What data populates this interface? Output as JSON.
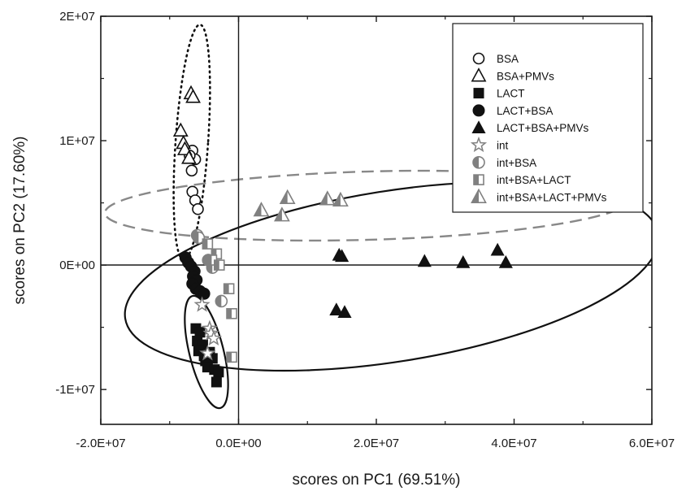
{
  "chart_data": {
    "type": "scatter",
    "xlabel": "scores on PC1 (69.51%)",
    "ylabel": "scores on PC2 (17.60%)",
    "xlim": [
      -20000000,
      60000000
    ],
    "ylim": [
      -12800000,
      20000000
    ],
    "x_ticks": [
      {
        "value": -20000000,
        "label": "-2.0E+07"
      },
      {
        "value": 0,
        "label": "0.0E+00"
      },
      {
        "value": 20000000,
        "label": "2.0E+07"
      },
      {
        "value": 40000000,
        "label": "4.0E+07"
      },
      {
        "value": 60000000,
        "label": "6.0E+07"
      }
    ],
    "y_ticks": [
      {
        "value": 20000000,
        "label": "2E+07"
      },
      {
        "value": 10000000,
        "label": "1E+07"
      },
      {
        "value": 0,
        "label": "0E+00"
      },
      {
        "value": -10000000,
        "label": "-1E+07"
      }
    ],
    "legend_position": "top-right",
    "series": [
      {
        "name": "BSA",
        "marker": "circle-open",
        "color": "#111111",
        "x": [
          -6700000.0,
          -6300000.0,
          -7100000.0,
          -6800000.0,
          -6700000.0,
          -6300000.0,
          -5900000.0
        ],
        "y": [
          9200000.0,
          8500000.0,
          8800000.0,
          7600000.0,
          5900000.0,
          5200000.0,
          4500000.0
        ]
      },
      {
        "name": "BSA+PMVs",
        "marker": "triangle-open",
        "color": "#111111",
        "x": [
          -6900000.0,
          -6600000.0,
          -8400000.0,
          -8000000.0,
          -7800000.0,
          -7200000.0
        ],
        "y": [
          13800000.0,
          13500000.0,
          10800000.0,
          9800000.0,
          9300000.0,
          8600000.0
        ]
      },
      {
        "name": "LACT",
        "marker": "square",
        "color": "#111111",
        "x": [
          -6200000.0,
          -5600000.0,
          -6000000.0,
          -5200000.0,
          -5800000.0,
          -5000000.0,
          -4200000.0,
          -4800000.0,
          -3800000.0,
          -4500000.0,
          -3500000.0,
          -2900000.0,
          -3200000.0
        ],
        "y": [
          -5100000.0,
          -5400000.0,
          -6100000.0,
          -6400000.0,
          -6900000.0,
          -7300000.0,
          -7000000.0,
          -7700000.0,
          -7500000.0,
          -8200000.0,
          -8400000.0,
          -8600000.0,
          -9400000.0
        ]
      },
      {
        "name": "LACT+BSA",
        "marker": "circle",
        "color": "#111111",
        "x": [
          -7700000.0,
          -7300000.0,
          -6900000.0,
          -6400000.0,
          -6600000.0,
          -6100000.0,
          -6700000.0,
          -6200000.0,
          -5600000.0,
          -5000000.0
        ],
        "y": [
          600000.0,
          200000.0,
          -100000.0,
          -500000.0,
          -900000.0,
          -1200000.0,
          -1500000.0,
          -1900000.0,
          -2100000.0,
          -2300000.0
        ]
      },
      {
        "name": "LACT+BSA+PMVs",
        "marker": "triangle",
        "color": "#111111",
        "x": [
          14600000.0,
          15000000.0,
          14200000.0,
          15400000.0,
          27000000.0,
          32600000.0,
          37600000.0,
          38800000.0
        ],
        "y": [
          800000.0,
          700000.0,
          -3600000.0,
          -3800000.0,
          300000.0,
          200000.0,
          1200000.0,
          200000.0
        ]
      },
      {
        "name": "int",
        "marker": "star-open",
        "color": "#808080",
        "x": [
          -5300000.0,
          -4200000.0,
          -4000000.0,
          -3600000.0,
          -4500000.0
        ],
        "y": [
          -3200000.0,
          -5100000.0,
          -5500000.0,
          -5900000.0,
          -7100000.0
        ]
      },
      {
        "name": "int+BSA",
        "marker": "circle-half",
        "color": "#808080",
        "x": [
          -6000000.0,
          -5800000.0,
          -4400000.0,
          -3800000.0,
          -2500000.0
        ],
        "y": [
          2400000.0,
          2200000.0,
          400000.0,
          -200000.0,
          -2900000.0
        ]
      },
      {
        "name": "int+BSA+LACT",
        "marker": "square-half",
        "color": "#808080",
        "x": [
          -4500000.0,
          -3200000.0,
          -3900000.0,
          -2800000.0,
          -1400000.0,
          -1000000.0,
          -1000000.0
        ],
        "y": [
          1700000.0,
          900000.0,
          400000.0,
          0.0,
          -1900000.0,
          -3900000.0,
          -7400000.0
        ]
      },
      {
        "name": "int+BSA+LACT+PMVs",
        "marker": "triangle-half",
        "color": "#808080",
        "x": [
          3300000.0,
          6300000.0,
          7100000.0,
          12900000.0,
          14800000.0
        ],
        "y": [
          4400000.0,
          4000000.0,
          5400000.0,
          5300000.0,
          5200000.0
        ]
      }
    ]
  }
}
